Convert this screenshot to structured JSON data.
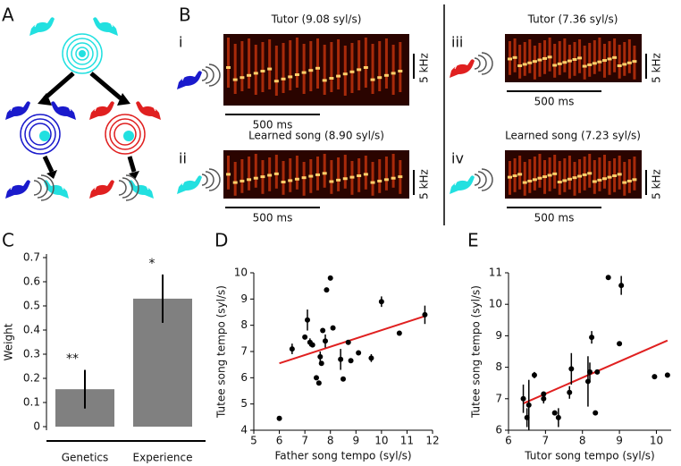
{
  "panel_labels": [
    "A",
    "B",
    "C",
    "D",
    "E"
  ],
  "panel_b": [
    {
      "numeral": "i",
      "title": "Tutor (9.08 syl/s)",
      "time_scale": "500 ms",
      "freq_scale": "5 kHz"
    },
    {
      "numeral": "ii",
      "title": "Learned song (8.90 syl/s)",
      "time_scale": "500 ms",
      "freq_scale": "5 kHz"
    },
    {
      "numeral": "iii",
      "title": "Tutor (7.36 syl/s)",
      "time_scale": "500 ms",
      "freq_scale": "5 kHz"
    },
    {
      "numeral": "iv",
      "title": "Learned song (7.23 syl/s)",
      "time_scale": "500 ms",
      "freq_scale": "5 kHz"
    }
  ],
  "chart_data": [
    {
      "type": "bar",
      "ylabel": "Weight",
      "categories": [
        "Genetics",
        "Experience"
      ],
      "values": [
        0.155,
        0.53
      ],
      "errors": [
        0.08,
        0.1
      ],
      "annotations": [
        "**",
        "*"
      ],
      "color": "#808080",
      "ylim": [
        0,
        0.7
      ],
      "yticks": [
        0,
        0.1,
        0.2,
        0.3,
        0.4,
        0.5,
        0.6,
        0.7
      ]
    },
    {
      "type": "scatter",
      "xlabel": "Father song tempo (syl/s)",
      "ylabel": "Tutee song tempo (syl/s)",
      "x": [
        6.0,
        6.5,
        7.0,
        7.1,
        7.2,
        7.3,
        7.45,
        7.55,
        7.6,
        7.65,
        7.7,
        7.8,
        7.85,
        8.0,
        8.1,
        8.4,
        8.5,
        8.7,
        8.8,
        9.1,
        9.6,
        10.0,
        10.7,
        11.7
      ],
      "values": [
        4.45,
        7.1,
        7.55,
        8.2,
        7.35,
        7.25,
        6.0,
        5.8,
        6.8,
        6.55,
        7.8,
        7.4,
        9.35,
        9.8,
        7.9,
        6.7,
        5.95,
        7.35,
        6.65,
        6.95,
        6.75,
        8.9,
        7.7,
        8.4
      ],
      "errors": [
        null,
        0.2,
        null,
        0.4,
        0.15,
        null,
        null,
        null,
        0.2,
        null,
        null,
        0.25,
        null,
        null,
        null,
        0.4,
        null,
        null,
        null,
        null,
        0.15,
        0.2,
        null,
        0.35
      ],
      "color": "#000000",
      "fit": {
        "x": [
          6.0,
          11.7
        ],
        "values": [
          6.55,
          8.35
        ],
        "color": "#e02020"
      },
      "xlim": [
        5,
        12
      ],
      "xticks": [
        5,
        6,
        7,
        8,
        9,
        10,
        11,
        12
      ],
      "ylim": [
        4,
        10
      ],
      "yticks": [
        4,
        5,
        6,
        7,
        8,
        9,
        10
      ]
    },
    {
      "type": "scatter",
      "xlabel": "Tutor song tempo (syl/s)",
      "ylabel": "Tutee song tempo (syl/s)",
      "x": [
        6.4,
        6.5,
        6.55,
        6.7,
        6.95,
        6.95,
        7.25,
        7.35,
        7.65,
        7.7,
        8.15,
        8.2,
        8.25,
        8.35,
        8.4,
        8.7,
        9.05,
        9.0,
        9.95,
        10.3
      ],
      "values": [
        7.0,
        6.4,
        6.8,
        7.75,
        7.0,
        7.15,
        6.55,
        6.4,
        7.2,
        7.95,
        7.55,
        7.85,
        8.95,
        6.55,
        7.85,
        10.85,
        10.6,
        8.75,
        7.7,
        7.75
      ],
      "errors": [
        0.45,
        0.3,
        0.8,
        0.1,
        0.15,
        null,
        null,
        0.3,
        0.2,
        0.5,
        0.8,
        0.3,
        0.2,
        null,
        null,
        null,
        0.3,
        null,
        null,
        null
      ],
      "color": "#000000",
      "fit": {
        "x": [
          6.4,
          10.3
        ],
        "values": [
          6.85,
          8.85
        ],
        "color": "#e02020"
      },
      "xlim": [
        6,
        10.4
      ],
      "xticks": [
        6,
        7,
        8,
        9,
        10
      ],
      "ylim": [
        6,
        11
      ],
      "yticks": [
        6,
        7,
        8,
        9,
        10,
        11
      ]
    }
  ]
}
